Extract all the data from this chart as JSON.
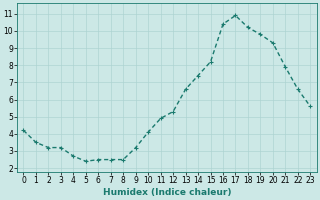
{
  "x": [
    0,
    1,
    2,
    3,
    4,
    5,
    6,
    7,
    8,
    9,
    10,
    11,
    12,
    13,
    14,
    15,
    16,
    17,
    18,
    19,
    20,
    21,
    22,
    23
  ],
  "y": [
    4.2,
    3.5,
    3.2,
    3.2,
    2.7,
    2.4,
    2.5,
    2.5,
    2.5,
    3.2,
    4.1,
    4.9,
    5.3,
    6.6,
    7.4,
    8.2,
    10.4,
    10.9,
    10.2,
    9.8,
    9.3,
    7.9,
    6.6,
    5.6
  ],
  "line_color": "#1a7a6e",
  "marker": "+",
  "marker_size": 3,
  "bg_color": "#cce8e6",
  "grid_color": "#aed4d2",
  "xlabel": "Humidex (Indice chaleur)",
  "xlim": [
    -0.5,
    23.5
  ],
  "ylim": [
    1.8,
    11.6
  ],
  "yticks": [
    2,
    3,
    4,
    5,
    6,
    7,
    8,
    9,
    10,
    11
  ],
  "xticks": [
    0,
    1,
    2,
    3,
    4,
    5,
    6,
    7,
    8,
    9,
    10,
    11,
    12,
    13,
    14,
    15,
    16,
    17,
    18,
    19,
    20,
    21,
    22,
    23
  ],
  "tick_fontsize": 5.5,
  "xlabel_fontsize": 6.5,
  "line_width": 1.0,
  "marker_edge_width": 0.8
}
